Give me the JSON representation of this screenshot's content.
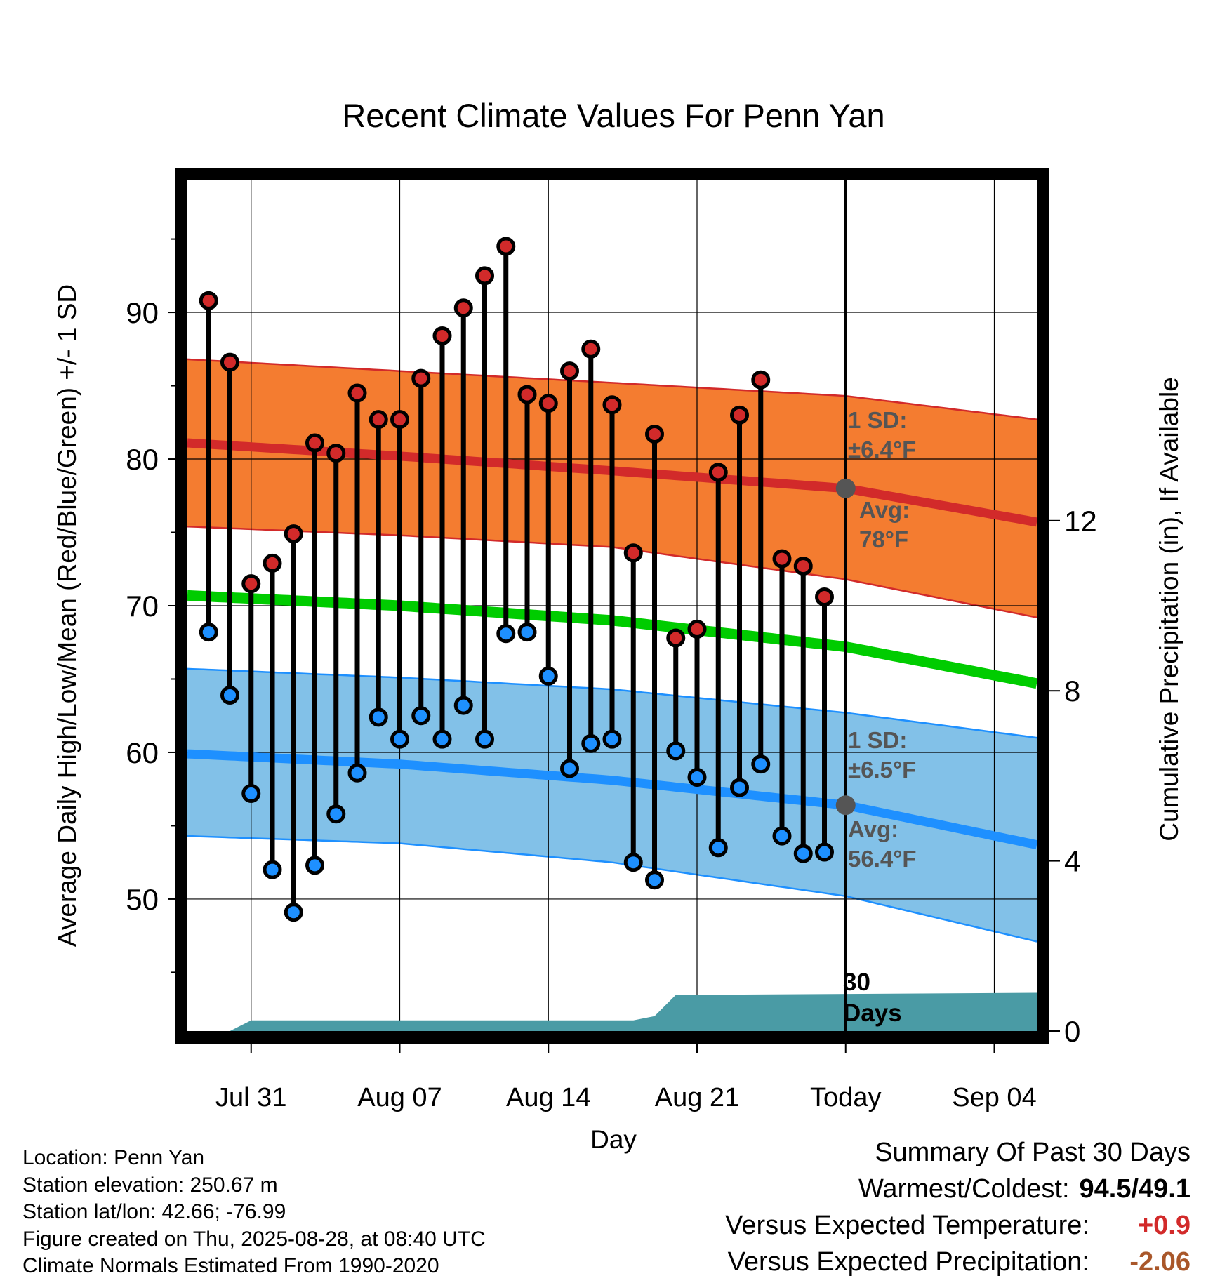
{
  "chart_data": {
    "type": "line",
    "title": "Recent Climate Values For Penn Yan",
    "xlabel": "Day",
    "ylabel": "Average Daily High/Low/Mean (Red/Blue/Green) +/- 1 SD",
    "y2label": "Cumulative Precipitation (in), If Available",
    "x_tick_labels": [
      "Jul 31",
      "Aug 07",
      "Aug 14",
      "Aug 21",
      "Today",
      "Sep 04"
    ],
    "xlim": [
      "2025-07-28",
      "2025-09-06"
    ],
    "today": "2025-08-28",
    "ylim": [
      41,
      99
    ],
    "yticks": [
      50,
      60,
      70,
      80,
      90
    ],
    "y2lim": [
      0,
      20
    ],
    "y2ticks": [
      0,
      4,
      8,
      12
    ],
    "grid": true,
    "colors": {
      "high": "#d22a2a",
      "low": "#1e90ff",
      "mean": "#00cc00",
      "high_band": "#f47c30",
      "low_band": "#82c1e8",
      "precip": "#4a9ba5",
      "annotation": "#555555"
    },
    "observed": {
      "dates": [
        "2025-07-29",
        "2025-07-30",
        "2025-07-31",
        "2025-08-01",
        "2025-08-02",
        "2025-08-03",
        "2025-08-04",
        "2025-08-05",
        "2025-08-06",
        "2025-08-07",
        "2025-08-08",
        "2025-08-09",
        "2025-08-10",
        "2025-08-11",
        "2025-08-12",
        "2025-08-13",
        "2025-08-14",
        "2025-08-15",
        "2025-08-16",
        "2025-08-17",
        "2025-08-18",
        "2025-08-19",
        "2025-08-20",
        "2025-08-21",
        "2025-08-22",
        "2025-08-23",
        "2025-08-24",
        "2025-08-25",
        "2025-08-26",
        "2025-08-27"
      ],
      "high": [
        90.8,
        86.6,
        71.5,
        72.9,
        74.9,
        81.1,
        80.4,
        84.5,
        82.7,
        82.7,
        85.5,
        88.4,
        90.3,
        92.5,
        94.5,
        84.4,
        83.8,
        86.0,
        87.5,
        83.7,
        73.6,
        81.7,
        67.8,
        68.4,
        79.1,
        83.0,
        85.4,
        73.2,
        72.7,
        70.6
      ],
      "low": [
        68.2,
        63.9,
        57.2,
        52.0,
        49.1,
        52.3,
        55.8,
        58.6,
        62.4,
        60.9,
        62.5,
        60.9,
        63.2,
        60.9,
        68.1,
        68.2,
        65.2,
        58.9,
        60.6,
        60.9,
        52.5,
        51.3,
        60.1,
        58.3,
        53.5,
        57.6,
        59.2,
        54.3,
        53.1,
        53.2
      ]
    },
    "normals": {
      "dates": [
        "2025-07-28",
        "2025-08-07",
        "2025-08-17",
        "2025-08-28",
        "2025-09-06"
      ],
      "high_avg": [
        81.1,
        80.2,
        79.2,
        78.0,
        75.7
      ],
      "high_upper": [
        86.8,
        86.0,
        85.2,
        84.3,
        82.7
      ],
      "high_lower": [
        75.4,
        74.8,
        74.0,
        71.8,
        69.2
      ],
      "mean_avg": [
        70.7,
        70.0,
        69.0,
        67.2,
        64.7
      ],
      "low_avg": [
        59.9,
        59.2,
        58.1,
        56.4,
        53.7
      ],
      "low_upper": [
        65.7,
        65.1,
        64.3,
        62.7,
        61.0
      ],
      "low_lower": [
        54.3,
        53.8,
        52.5,
        50.2,
        47.1
      ]
    },
    "precip_cumulative": {
      "dates": [
        "2025-07-30",
        "2025-07-31",
        "2025-08-18",
        "2025-08-19",
        "2025-08-20",
        "2025-09-06"
      ],
      "values": [
        0.0,
        0.25,
        0.25,
        0.35,
        0.85,
        0.9
      ]
    },
    "annotations": {
      "high_sd_label": "1 SD:",
      "high_sd_value": "±6.4°F",
      "high_avg_label": "Avg:",
      "high_avg_value": "78°F",
      "low_sd_label": "1 SD:",
      "low_sd_value": "±6.5°F",
      "low_avg_label": "Avg:",
      "low_avg_value": "56.4°F",
      "days_value": "30",
      "days_label": "Days"
    }
  },
  "info": {
    "location": "Location: Penn Yan",
    "elevation": "Station elevation: 250.67 m",
    "latlon": "Station lat/lon: 42.66; -76.99",
    "created": "Figure created on Thu, 2025-08-28, at 08:40 UTC",
    "normals": "Climate Normals Estimated From 1990-2020"
  },
  "summary": {
    "title": "Summary Of Past 30 Days",
    "warmest_coldest_label": "Warmest/Coldest:",
    "warmest_coldest_value": "94.5/49.1",
    "temp_label": "Versus Expected Temperature:",
    "temp_value": "+0.9",
    "precip_label": "Versus Expected Precipitation:",
    "precip_value": "-2.06"
  }
}
